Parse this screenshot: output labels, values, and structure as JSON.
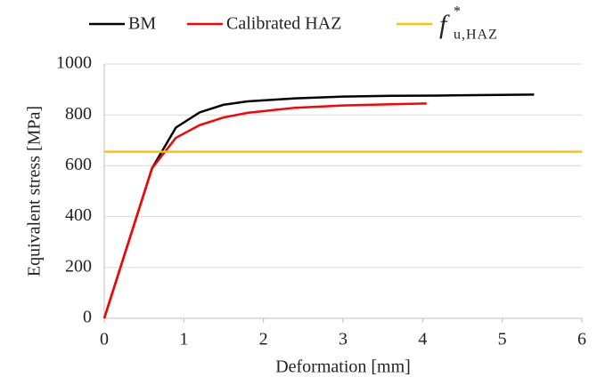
{
  "chart_data": {
    "type": "line",
    "xlabel": "Deformation [mm]",
    "ylabel": "Equivalent stress [MPa]",
    "xlim": [
      0,
      6
    ],
    "xticks": [
      0,
      1,
      2,
      3,
      4,
      5,
      6
    ],
    "ylim": [
      0,
      1000
    ],
    "yticks": [
      0,
      200,
      400,
      600,
      800,
      1000
    ],
    "grid": true,
    "legend": "top",
    "series": [
      {
        "name": "BM",
        "color": "#000000",
        "x": [
          0,
          0.6,
          0.9,
          1.2,
          1.5,
          1.8,
          2.4,
          3,
          3.6,
          4.2,
          4.8,
          5.4
        ],
        "values": [
          0,
          590,
          750,
          810,
          840,
          853,
          865,
          872,
          875,
          876,
          878,
          880
        ]
      },
      {
        "name": "Calibrated HAZ",
        "color": "#ff0000",
        "x": [
          0,
          0.6,
          0.9,
          1.2,
          1.5,
          1.8,
          2.1,
          2.4,
          3,
          3.6,
          4.05
        ],
        "values": [
          0,
          590,
          710,
          760,
          790,
          808,
          818,
          828,
          837,
          842,
          845
        ]
      },
      {
        "name": "f",
        "name_sup": "*",
        "name_sub": "u,HAZ",
        "color": "#ffc000",
        "x": [
          0,
          6
        ],
        "values": [
          655,
          655
        ]
      }
    ]
  }
}
